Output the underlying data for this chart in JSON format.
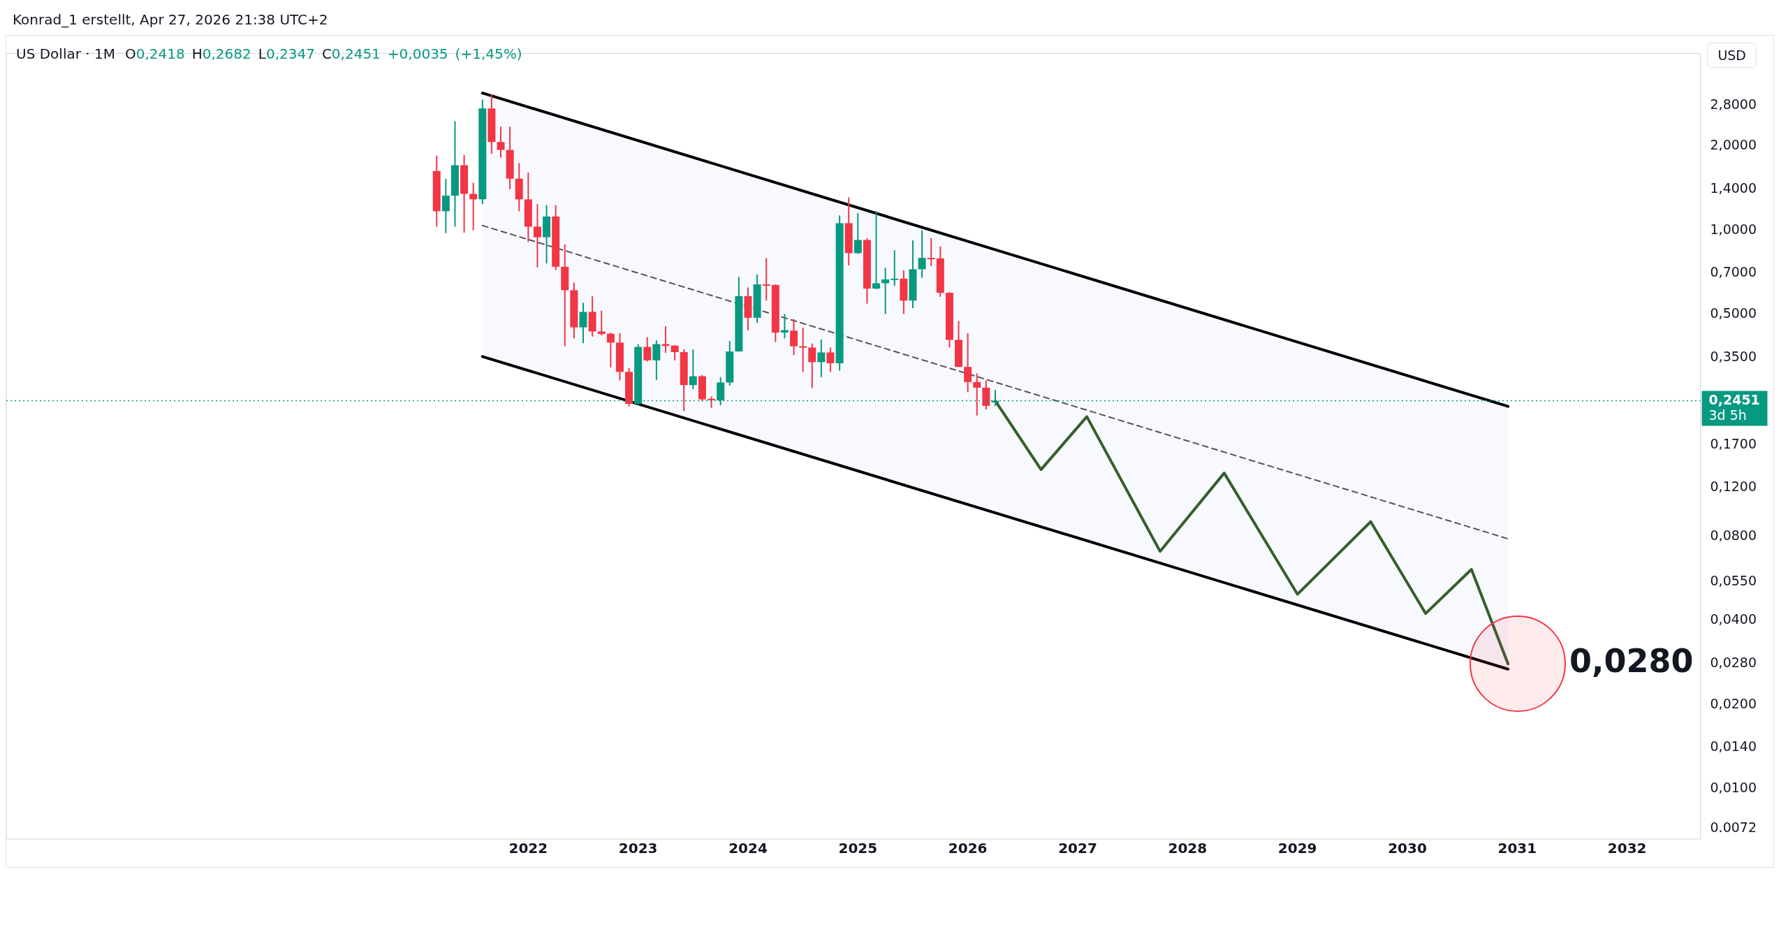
{
  "chart_data": {
    "type": "candlestick",
    "title": "US Dollar · 1M",
    "ylabel": "USD",
    "annotations": [
      "Konrad_1 erstellt, Apr 27, 2026 21:38 UTC+2",
      "O0,2418 H0,2682 L0,2347 C0,2451 +0,0035 (+1,45%)",
      "3d 5h",
      {
        "text": "0,0280",
        "x": "2030-12",
        "y": 0.028
      }
    ],
    "x": [
      "2021-03",
      "2021-04",
      "2021-05",
      "2021-06",
      "2021-07",
      "2021-08",
      "2021-09",
      "2021-10",
      "2021-11",
      "2021-12",
      "2022-01",
      "2022-02",
      "2022-03",
      "2022-04",
      "2022-05",
      "2022-06",
      "2022-07",
      "2022-08",
      "2022-09",
      "2022-10",
      "2022-11",
      "2022-12",
      "2023-01",
      "2023-02",
      "2023-03",
      "2023-04",
      "2023-05",
      "2023-06",
      "2023-07",
      "2023-08",
      "2023-09",
      "2023-10",
      "2023-11",
      "2023-12",
      "2024-01",
      "2024-02",
      "2024-03",
      "2024-04",
      "2024-05",
      "2024-06",
      "2024-07",
      "2024-08",
      "2024-09",
      "2024-10",
      "2024-11",
      "2024-12",
      "2025-01",
      "2025-02",
      "2025-03",
      "2025-04",
      "2025-05",
      "2025-06",
      "2025-07",
      "2025-08",
      "2025-09",
      "2025-10",
      "2025-11",
      "2025-12",
      "2026-01",
      "2026-02",
      "2026-03",
      "2026-04"
    ],
    "ohlc": [
      [
        1.63,
        1.85,
        1.03,
        1.17
      ],
      [
        1.17,
        1.53,
        0.977,
        1.33
      ],
      [
        1.33,
        2.46,
        1.03,
        1.71
      ],
      [
        1.71,
        1.86,
        0.98,
        1.35
      ],
      [
        1.35,
        1.48,
        1.0,
        1.29
      ],
      [
        1.29,
        2.94,
        1.24,
        2.73
      ],
      [
        2.73,
        3.06,
        1.88,
        2.07
      ],
      [
        2.07,
        2.35,
        1.82,
        1.94
      ],
      [
        1.94,
        2.35,
        1.4,
        1.53
      ],
      [
        1.53,
        1.74,
        1.17,
        1.29
      ],
      [
        1.29,
        1.61,
        0.91,
        1.03
      ],
      [
        1.03,
        1.24,
        0.736,
        0.944
      ],
      [
        0.944,
        1.23,
        0.76,
        1.12
      ],
      [
        1.12,
        1.23,
        0.72,
        0.74
      ],
      [
        0.74,
        0.89,
        0.384,
        0.61
      ],
      [
        0.61,
        0.65,
        0.41,
        0.449
      ],
      [
        0.449,
        0.55,
        0.394,
        0.51
      ],
      [
        0.51,
        0.58,
        0.416,
        0.434
      ],
      [
        0.434,
        0.515,
        0.42,
        0.425
      ],
      [
        0.426,
        0.43,
        0.323,
        0.396
      ],
      [
        0.396,
        0.428,
        0.29,
        0.311
      ],
      [
        0.311,
        0.321,
        0.234,
        0.239
      ],
      [
        0.239,
        0.391,
        0.237,
        0.382
      ],
      [
        0.382,
        0.414,
        0.339,
        0.342
      ],
      [
        0.342,
        0.403,
        0.291,
        0.391
      ],
      [
        0.391,
        0.453,
        0.364,
        0.385
      ],
      [
        0.386,
        0.388,
        0.342,
        0.366
      ],
      [
        0.366,
        0.375,
        0.225,
        0.279
      ],
      [
        0.279,
        0.374,
        0.27,
        0.3
      ],
      [
        0.3,
        0.303,
        0.244,
        0.248
      ],
      [
        0.249,
        0.254,
        0.231,
        0.247
      ],
      [
        0.246,
        0.298,
        0.236,
        0.285
      ],
      [
        0.285,
        0.401,
        0.278,
        0.368
      ],
      [
        0.368,
        0.68,
        0.368,
        0.581
      ],
      [
        0.581,
        0.624,
        0.438,
        0.486
      ],
      [
        0.486,
        0.695,
        0.466,
        0.64
      ],
      [
        0.64,
        0.795,
        0.56,
        0.635
      ],
      [
        0.637,
        0.64,
        0.398,
        0.43
      ],
      [
        0.43,
        0.501,
        0.41,
        0.439
      ],
      [
        0.437,
        0.481,
        0.357,
        0.384
      ],
      [
        0.384,
        0.448,
        0.311,
        0.38
      ],
      [
        0.38,
        0.393,
        0.272,
        0.337
      ],
      [
        0.337,
        0.406,
        0.298,
        0.365
      ],
      [
        0.365,
        0.38,
        0.311,
        0.334
      ],
      [
        0.334,
        1.13,
        0.314,
        1.06
      ],
      [
        1.06,
        1.31,
        0.748,
        0.828
      ],
      [
        0.828,
        1.15,
        0.823,
        0.923
      ],
      [
        0.923,
        0.937,
        0.546,
        0.618
      ],
      [
        0.618,
        1.17,
        0.615,
        0.646
      ],
      [
        0.646,
        0.734,
        0.501,
        0.667
      ],
      [
        0.667,
        0.848,
        0.632,
        0.671
      ],
      [
        0.671,
        0.718,
        0.501,
        0.56
      ],
      [
        0.56,
        0.92,
        0.526,
        0.725
      ],
      [
        0.725,
        1.0,
        0.676,
        0.796
      ],
      [
        0.796,
        0.937,
        0.744,
        0.793
      ],
      [
        0.793,
        0.875,
        0.578,
        0.597
      ],
      [
        0.597,
        0.6,
        0.38,
        0.405
      ],
      [
        0.405,
        0.473,
        0.324,
        0.324
      ],
      [
        0.324,
        0.428,
        0.263,
        0.286
      ],
      [
        0.286,
        0.307,
        0.217,
        0.273
      ],
      [
        0.273,
        0.29,
        0.228,
        0.235
      ],
      [
        0.2418,
        0.2682,
        0.2347,
        0.2451
      ]
    ],
    "series": [
      {
        "type": "line",
        "x": [
          "2021-08",
          "2030-12"
        ],
        "values": [
          3.1,
          0.234
        ],
        "color": "#000000"
      },
      {
        "type": "line",
        "x": [
          "2021-08",
          "2030-12"
        ],
        "values": [
          0.353,
          0.0268
        ],
        "color": "#000000"
      },
      {
        "type": "line",
        "x": [
          "2021-08",
          "2030-12"
        ],
        "values": [
          1.04,
          0.0785
        ],
        "lower": [
          0.353,
          0.0268
        ],
        "upper": [
          3.1,
          0.234
        ],
        "color": "#555555",
        "line_style": "dashed"
      },
      {
        "type": "line",
        "x": [
          "2026-04",
          "2026-09",
          "2027-02",
          "2027-10",
          "2028-05",
          "2029-01",
          "2029-09",
          "2030-03",
          "2030-08",
          "2030-12"
        ],
        "values": [
          0.2451,
          0.139,
          0.215,
          0.0708,
          0.135,
          0.0497,
          0.0904,
          0.0424,
          0.061,
          0.028
        ],
        "color": "#375e2c"
      }
    ],
    "ref_lines": [
      {
        "axis": "y",
        "value": 0.2451,
        "label": "0,2451",
        "color": "#089981",
        "line_style": "dotted"
      }
    ],
    "log": "y",
    "grid": false,
    "legend": false,
    "xlim": [
      "2017-04",
      "2032-09"
    ],
    "xticks": [
      "2022",
      "2023",
      "2024",
      "2025",
      "2026",
      "2027",
      "2028",
      "2029",
      "2030",
      "2031",
      "2032"
    ],
    "ylim": [
      0.0066,
      4.3
    ],
    "yticks": [
      {
        "value": 2.8,
        "label": "2,8000"
      },
      {
        "value": 2.0,
        "label": "2,0000"
      },
      {
        "value": 1.4,
        "label": "1,4000"
      },
      {
        "value": 1.0,
        "label": "1,0000"
      },
      {
        "value": 0.7,
        "label": "0,7000"
      },
      {
        "value": 0.5,
        "label": "0,5000"
      },
      {
        "value": 0.35,
        "label": "0,3500"
      },
      {
        "value": 0.17,
        "label": "0,1700"
      },
      {
        "value": 0.12,
        "label": "0,1200"
      },
      {
        "value": 0.08,
        "label": "0,0800"
      },
      {
        "value": 0.055,
        "label": "0,0550"
      },
      {
        "value": 0.04,
        "label": "0,0400"
      },
      {
        "value": 0.028,
        "label": "0,0280"
      },
      {
        "value": 0.02,
        "label": "0,0200"
      },
      {
        "value": 0.014,
        "label": "0,0140"
      },
      {
        "value": 0.01,
        "label": "0,0100"
      },
      {
        "value": 0.0072,
        "label": "0.0072"
      }
    ]
  }
}
